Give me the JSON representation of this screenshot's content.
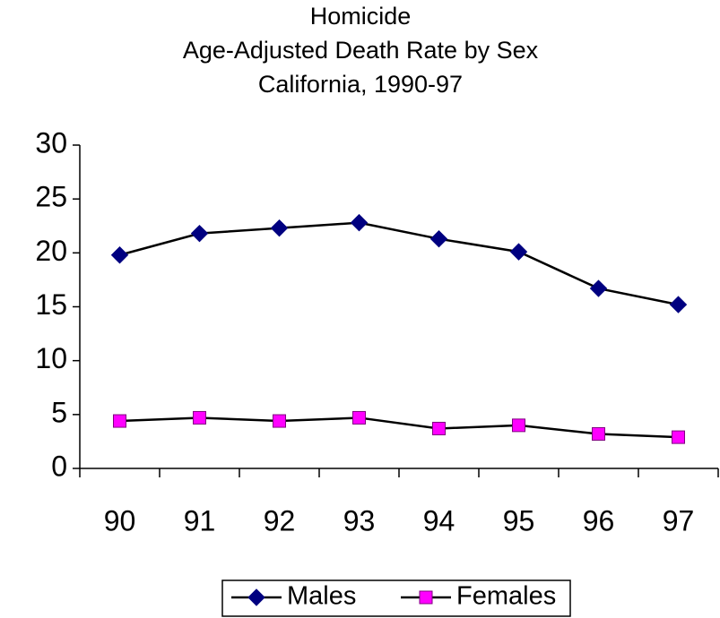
{
  "chart_data": {
    "type": "line",
    "title": [
      "Homicide",
      "Age-Adjusted Death Rate by Sex",
      "California, 1990-97"
    ],
    "categories": [
      "90",
      "91",
      "92",
      "93",
      "94",
      "95",
      "96",
      "97"
    ],
    "series": [
      {
        "name": "Males",
        "color": "#000080",
        "marker": "diamond",
        "values": [
          19.8,
          21.8,
          22.3,
          22.8,
          21.3,
          20.1,
          16.7,
          15.2
        ]
      },
      {
        "name": "Females",
        "color": "#ff00ff",
        "marker": "square",
        "values": [
          4.4,
          4.7,
          4.4,
          4.7,
          3.7,
          4.0,
          3.2,
          2.9
        ]
      }
    ],
    "ylim": [
      0,
      30
    ],
    "yticks": [
      0,
      5,
      10,
      15,
      20,
      25,
      30
    ],
    "grid": false,
    "legend": "bottom"
  }
}
